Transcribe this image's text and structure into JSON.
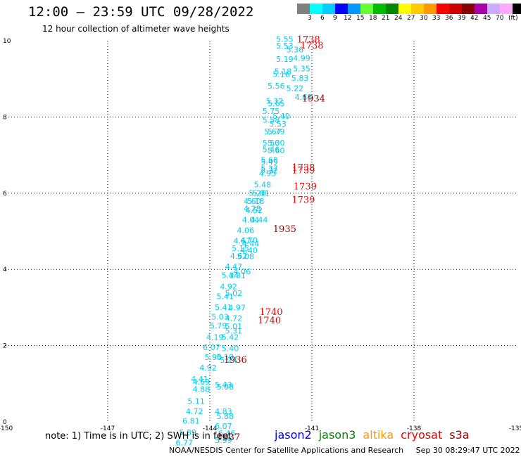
{
  "header": {
    "title": "12:00 – 23:59 UTC 09/28/2022",
    "subtitle": "12 hour collection of altimeter wave heights"
  },
  "legend": {
    "colors": [
      "#808080",
      "#00ffff",
      "#00d0ff",
      "#0000ff",
      "#0099ff",
      "#66ff33",
      "#00bb00",
      "#008800",
      "#ffff00",
      "#ffcc00",
      "#ff9900",
      "#ff0000",
      "#cc0000",
      "#880000",
      "#aa00aa",
      "#ccaaff",
      "#ffaaff",
      "#000000"
    ],
    "labels": [
      "3",
      "6",
      "9",
      "12",
      "15",
      "18",
      "21",
      "24",
      "27",
      "30",
      "33",
      "36",
      "39",
      "42",
      "45",
      "70",
      "(ft)"
    ]
  },
  "chart_data": {
    "type": "scatter",
    "xlim": [
      -150,
      -135
    ],
    "ylim": [
      0,
      10
    ],
    "x_ticks": [
      "-150",
      "-147",
      "-144",
      "-141",
      "-138",
      "-135"
    ],
    "y_ticks": [
      "0",
      "2",
      "4",
      "6",
      "8",
      "10"
    ],
    "grid": true,
    "points": [
      {
        "x": -141.8,
        "y": 9.97,
        "label": "5.55",
        "color": "#00ccee"
      },
      {
        "x": -141.8,
        "y": 9.8,
        "label": "5.53",
        "color": "#00ccee"
      },
      {
        "x": -141.5,
        "y": 9.7,
        "label": "5.36",
        "color": "#00ccee"
      },
      {
        "x": -141.8,
        "y": 9.45,
        "label": "5.19",
        "color": "#00ccee"
      },
      {
        "x": -141.3,
        "y": 9.47,
        "label": "4.99",
        "color": "#00ccee"
      },
      {
        "x": -141.3,
        "y": 9.2,
        "label": "5.35",
        "color": "#00ccee"
      },
      {
        "x": -141.85,
        "y": 9.12,
        "label": "5.18",
        "color": "#00ccee"
      },
      {
        "x": -141.9,
        "y": 9.05,
        "label": "5.16",
        "color": "#00ccee"
      },
      {
        "x": -141.35,
        "y": 8.95,
        "label": "5.83",
        "color": "#00ccee"
      },
      {
        "x": -142.05,
        "y": 8.75,
        "label": "5.56",
        "color": "#00ccee"
      },
      {
        "x": -141.5,
        "y": 8.68,
        "label": "5.22",
        "color": "#00ccee"
      },
      {
        "x": -141.25,
        "y": 8.45,
        "label": "4.68",
        "color": "#00ccee"
      },
      {
        "x": -142.1,
        "y": 8.35,
        "label": "5.32",
        "color": "#00ccee"
      },
      {
        "x": -142.05,
        "y": 8.28,
        "label": "5.65",
        "color": "#00ccee"
      },
      {
        "x": -142.2,
        "y": 8.08,
        "label": "5.75",
        "color": "#00ccee"
      },
      {
        "x": -141.9,
        "y": 7.95,
        "label": "5.40",
        "color": "#00ccee"
      },
      {
        "x": -142.2,
        "y": 7.85,
        "label": "5.58",
        "color": "#00ccee"
      },
      {
        "x": -142.0,
        "y": 7.75,
        "label": "5.53",
        "color": "#00ccee"
      },
      {
        "x": -142.15,
        "y": 7.55,
        "label": "5.67",
        "color": "#00ccee"
      },
      {
        "x": -142.05,
        "y": 7.55,
        "label": "5.79",
        "color": "#00ccee"
      },
      {
        "x": -142.2,
        "y": 7.25,
        "label": "5.50",
        "color": "#00ccee"
      },
      {
        "x": -142.05,
        "y": 7.25,
        "label": "5.30",
        "color": "#00ccee"
      },
      {
        "x": -142.2,
        "y": 7.08,
        "label": "5.46",
        "color": "#00ccee"
      },
      {
        "x": -142.05,
        "y": 7.05,
        "label": "5.60",
        "color": "#00ccee"
      },
      {
        "x": -142.25,
        "y": 6.8,
        "label": "5.68",
        "color": "#00ccee"
      },
      {
        "x": -142.25,
        "y": 6.75,
        "label": "5.49",
        "color": "#00ccee"
      },
      {
        "x": -142.25,
        "y": 6.58,
        "label": "5.37",
        "color": "#00ccee"
      },
      {
        "x": -142.25,
        "y": 6.52,
        "label": "5.32",
        "color": "#00ccee"
      },
      {
        "x": -142.3,
        "y": 6.45,
        "label": "4.95",
        "color": "#00ccee"
      },
      {
        "x": -142.45,
        "y": 6.15,
        "label": "5.48",
        "color": "#00ccee"
      },
      {
        "x": -142.6,
        "y": 5.93,
        "label": "5.20",
        "color": "#00ccee"
      },
      {
        "x": -142.5,
        "y": 5.93,
        "label": "5.01",
        "color": "#00ccee"
      },
      {
        "x": -142.75,
        "y": 5.72,
        "label": "4.60",
        "color": "#00ccee"
      },
      {
        "x": -142.65,
        "y": 5.72,
        "label": "5.18",
        "color": "#00ccee"
      },
      {
        "x": -142.75,
        "y": 5.53,
        "label": "4.28",
        "color": "#00ccee"
      },
      {
        "x": -142.7,
        "y": 5.48,
        "label": "4.52",
        "color": "#00ccee"
      },
      {
        "x": -142.8,
        "y": 5.23,
        "label": "4.04",
        "color": "#00ccee"
      },
      {
        "x": -142.55,
        "y": 5.23,
        "label": "4.44",
        "color": "#00ccee"
      },
      {
        "x": -142.95,
        "y": 4.95,
        "label": "4.06",
        "color": "#00ccee"
      },
      {
        "x": -143.05,
        "y": 4.68,
        "label": "4.67",
        "color": "#00ccee"
      },
      {
        "x": -142.85,
        "y": 4.7,
        "label": "4.70",
        "color": "#00ccee"
      },
      {
        "x": -142.8,
        "y": 4.6,
        "label": "4.44",
        "color": "#00ccee"
      },
      {
        "x": -143.1,
        "y": 4.48,
        "label": "5.15",
        "color": "#00ccee"
      },
      {
        "x": -142.85,
        "y": 4.43,
        "label": "4.40",
        "color": "#00ccee"
      },
      {
        "x": -143.15,
        "y": 4.28,
        "label": "4.62",
        "color": "#00ccee"
      },
      {
        "x": -142.95,
        "y": 4.27,
        "label": "5.08",
        "color": "#00ccee"
      },
      {
        "x": -143.3,
        "y": 4.0,
        "label": "4.47",
        "color": "#00ccee"
      },
      {
        "x": -143.05,
        "y": 3.87,
        "label": "4.06",
        "color": "#00ccee"
      },
      {
        "x": -143.4,
        "y": 3.77,
        "label": "5.34",
        "color": "#00ccee"
      },
      {
        "x": -143.2,
        "y": 3.77,
        "label": "4.31",
        "color": "#00ccee"
      },
      {
        "x": -143.45,
        "y": 3.48,
        "label": "4.92",
        "color": "#00ccee"
      },
      {
        "x": -143.3,
        "y": 3.3,
        "label": "5.02",
        "color": "#00ccee"
      },
      {
        "x": -143.55,
        "y": 3.22,
        "label": "5.41",
        "color": "#00ccee"
      },
      {
        "x": -143.6,
        "y": 2.93,
        "label": "5.41",
        "color": "#00ccee"
      },
      {
        "x": -143.2,
        "y": 2.92,
        "label": "4.97",
        "color": "#00ccee"
      },
      {
        "x": -143.7,
        "y": 2.68,
        "label": "5.03",
        "color": "#00ccee"
      },
      {
        "x": -143.3,
        "y": 2.65,
        "label": "4.72",
        "color": "#00ccee"
      },
      {
        "x": -143.75,
        "y": 2.45,
        "label": "5.79",
        "color": "#00ccee"
      },
      {
        "x": -143.3,
        "y": 2.44,
        "label": "5.01",
        "color": "#00ccee"
      },
      {
        "x": -143.3,
        "y": 2.32,
        "label": "5.31",
        "color": "#00ccee"
      },
      {
        "x": -143.85,
        "y": 2.15,
        "label": "4.19",
        "color": "#00ccee"
      },
      {
        "x": -143.4,
        "y": 2.15,
        "label": "5.42",
        "color": "#00ccee"
      },
      {
        "x": -143.95,
        "y": 1.88,
        "label": "6.07",
        "color": "#00ccee"
      },
      {
        "x": -143.4,
        "y": 1.85,
        "label": "5.40",
        "color": "#00ccee"
      },
      {
        "x": -143.9,
        "y": 1.62,
        "label": "5.90",
        "color": "#00ccee"
      },
      {
        "x": -143.55,
        "y": 1.63,
        "label": "5.10",
        "color": "#00ccee"
      },
      {
        "x": -143.45,
        "y": 1.55,
        "label": "5.24",
        "color": "#00ccee"
      },
      {
        "x": -144.05,
        "y": 1.35,
        "label": "4.92",
        "color": "#00ccee"
      },
      {
        "x": -144.3,
        "y": 1.05,
        "label": "4.41",
        "color": "#00ccee"
      },
      {
        "x": -144.25,
        "y": 0.98,
        "label": "4.69",
        "color": "#00ccee"
      },
      {
        "x": -143.6,
        "y": 0.9,
        "label": "5.43",
        "color": "#00ccee"
      },
      {
        "x": -143.55,
        "y": 0.85,
        "label": "5.08",
        "color": "#00ccee"
      },
      {
        "x": -144.25,
        "y": 0.78,
        "label": "4.88",
        "color": "#00ccee"
      },
      {
        "x": -144.4,
        "y": 0.47,
        "label": "5.11",
        "color": "#00ccee"
      },
      {
        "x": -144.45,
        "y": 0.2,
        "label": "4.72",
        "color": "#00ccee"
      },
      {
        "x": -143.6,
        "y": 0.2,
        "label": "4.83",
        "color": "#00ccee"
      },
      {
        "x": -143.55,
        "y": 0.07,
        "label": "5.88",
        "color": "#00ccee"
      },
      {
        "x": -144.55,
        "y": -0.05,
        "label": "6.81",
        "color": "#00ccee"
      },
      {
        "x": -143.6,
        "y": -0.18,
        "label": "6.07",
        "color": "#00ccee"
      },
      {
        "x": -144.65,
        "y": -0.35,
        "label": "5.89",
        "color": "#00ccee"
      },
      {
        "x": -143.5,
        "y": -0.37,
        "label": "6.46",
        "color": "#00ccee"
      },
      {
        "x": -144.75,
        "y": -0.62,
        "label": "6.77",
        "color": "#00ccee"
      },
      {
        "x": -143.6,
        "y": -0.55,
        "label": "5.99",
        "color": "#00ccee"
      }
    ],
    "time_labels": [
      {
        "x": -141.1,
        "y": 9.95,
        "label": "1738",
        "color": "#ee0000"
      },
      {
        "x": -141.0,
        "y": 9.8,
        "label": "1738",
        "color": "#ee0000"
      },
      {
        "x": -140.95,
        "y": 8.4,
        "label": "1934",
        "color": "#990000"
      },
      {
        "x": -141.25,
        "y": 6.6,
        "label": "1738",
        "color": "#ee0000"
      },
      {
        "x": -141.25,
        "y": 6.52,
        "label": "1739",
        "color": "#ee0000"
      },
      {
        "x": -141.2,
        "y": 6.1,
        "label": "1739",
        "color": "#ee0000"
      },
      {
        "x": -141.25,
        "y": 5.75,
        "label": "1739",
        "color": "#ee0000"
      },
      {
        "x": -141.8,
        "y": 4.98,
        "label": "1935",
        "color": "#990000"
      },
      {
        "x": -142.2,
        "y": 2.8,
        "label": "1740",
        "color": "#ee0000"
      },
      {
        "x": -142.25,
        "y": 2.58,
        "label": "1740",
        "color": "#ee0000"
      },
      {
        "x": -143.25,
        "y": 1.55,
        "label": "1936",
        "color": "#990000"
      },
      {
        "x": -143.45,
        "y": -0.48,
        "label": "1937",
        "color": "#990000"
      }
    ]
  },
  "note": "note: 1) Time is in UTC; 2) SWH is in feet",
  "satellites": [
    {
      "name": "jason2",
      "color": "#0000ee"
    },
    {
      "name": "jason3",
      "color": "#008800"
    },
    {
      "name": "altika",
      "color": "#ff9900"
    },
    {
      "name": "cryosat",
      "color": "#ee0000"
    },
    {
      "name": "s3a",
      "color": "#990000"
    }
  ],
  "footer": {
    "credit": "NOAA/NESDIS Center for Satellite Applications and Research",
    "timestamp": "Sep 30 08:29:47 UTC 2022"
  }
}
